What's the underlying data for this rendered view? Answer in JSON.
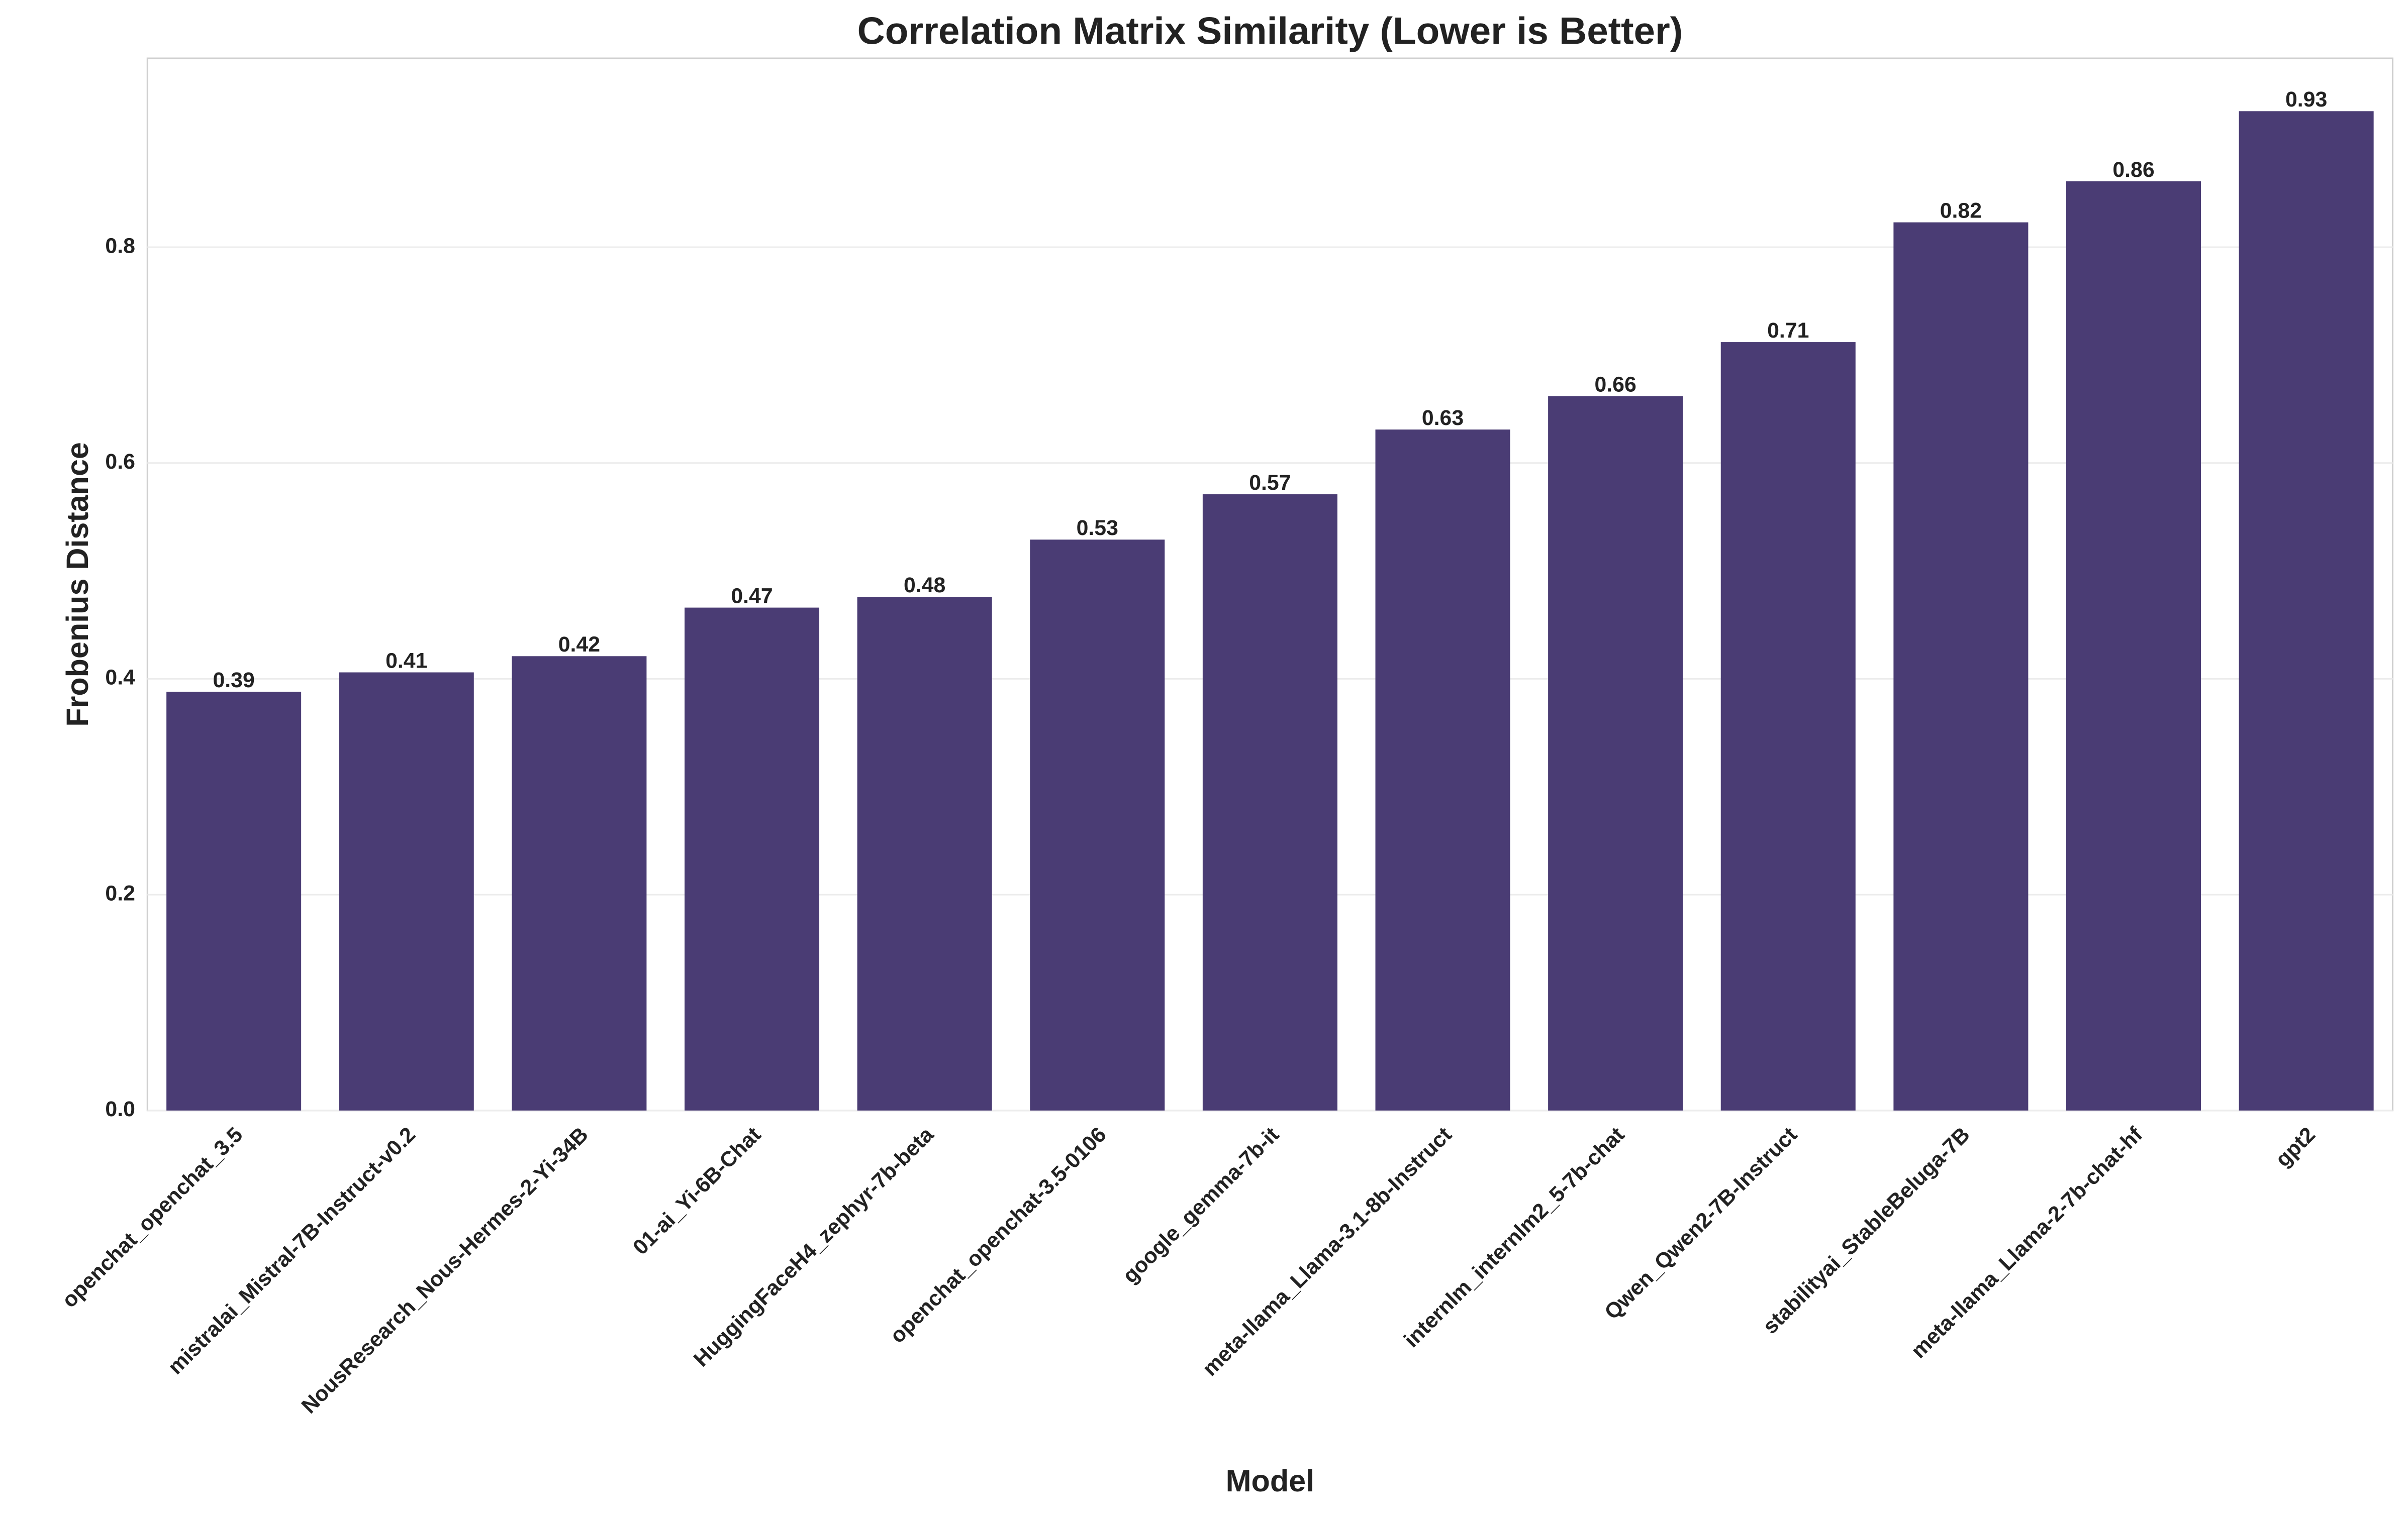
{
  "chart_data": {
    "type": "bar",
    "title": "Correlation Matrix Similarity (Lower is Better)",
    "x_label": "Model",
    "y_label": "Frobenius Distance",
    "categories": [
      "openchat_openchat_3.5",
      "mistralai_Mistral-7B-Instruct-v0.2",
      "NousResearch_Nous-Hermes-2-Yi-34B",
      "01-ai_Yi-6B-Chat",
      "HuggingFaceH4_zephyr-7b-beta",
      "openchat_openchat-3.5-0106",
      "google_gemma-7b-it",
      "meta-llama_Llama-3.1-8b-Instruct",
      "internlm_internlm2_5-7b-chat",
      "Qwen_Qwen2-7B-Instruct",
      "stabilityai_StableBeluga-7B",
      "meta-llama_Llama-2-7b-chat-hf",
      "gpt2"
    ],
    "values": [
      0.388,
      0.406,
      0.421,
      0.466,
      0.476,
      0.529,
      0.571,
      0.631,
      0.662,
      0.712,
      0.823,
      0.861,
      0.926
    ],
    "value_labels": [
      "0.39",
      "0.41",
      "0.42",
      "0.47",
      "0.48",
      "0.53",
      "0.57",
      "0.63",
      "0.66",
      "0.71",
      "0.82",
      "0.86",
      "0.93"
    ],
    "color": "#4a3c74",
    "ylim": [
      0,
      0.975
    ],
    "yticks": [
      {
        "value": 0,
        "label": "0.0"
      },
      0.2,
      0.4,
      0.6,
      0.8
    ],
    "grid": true
  }
}
